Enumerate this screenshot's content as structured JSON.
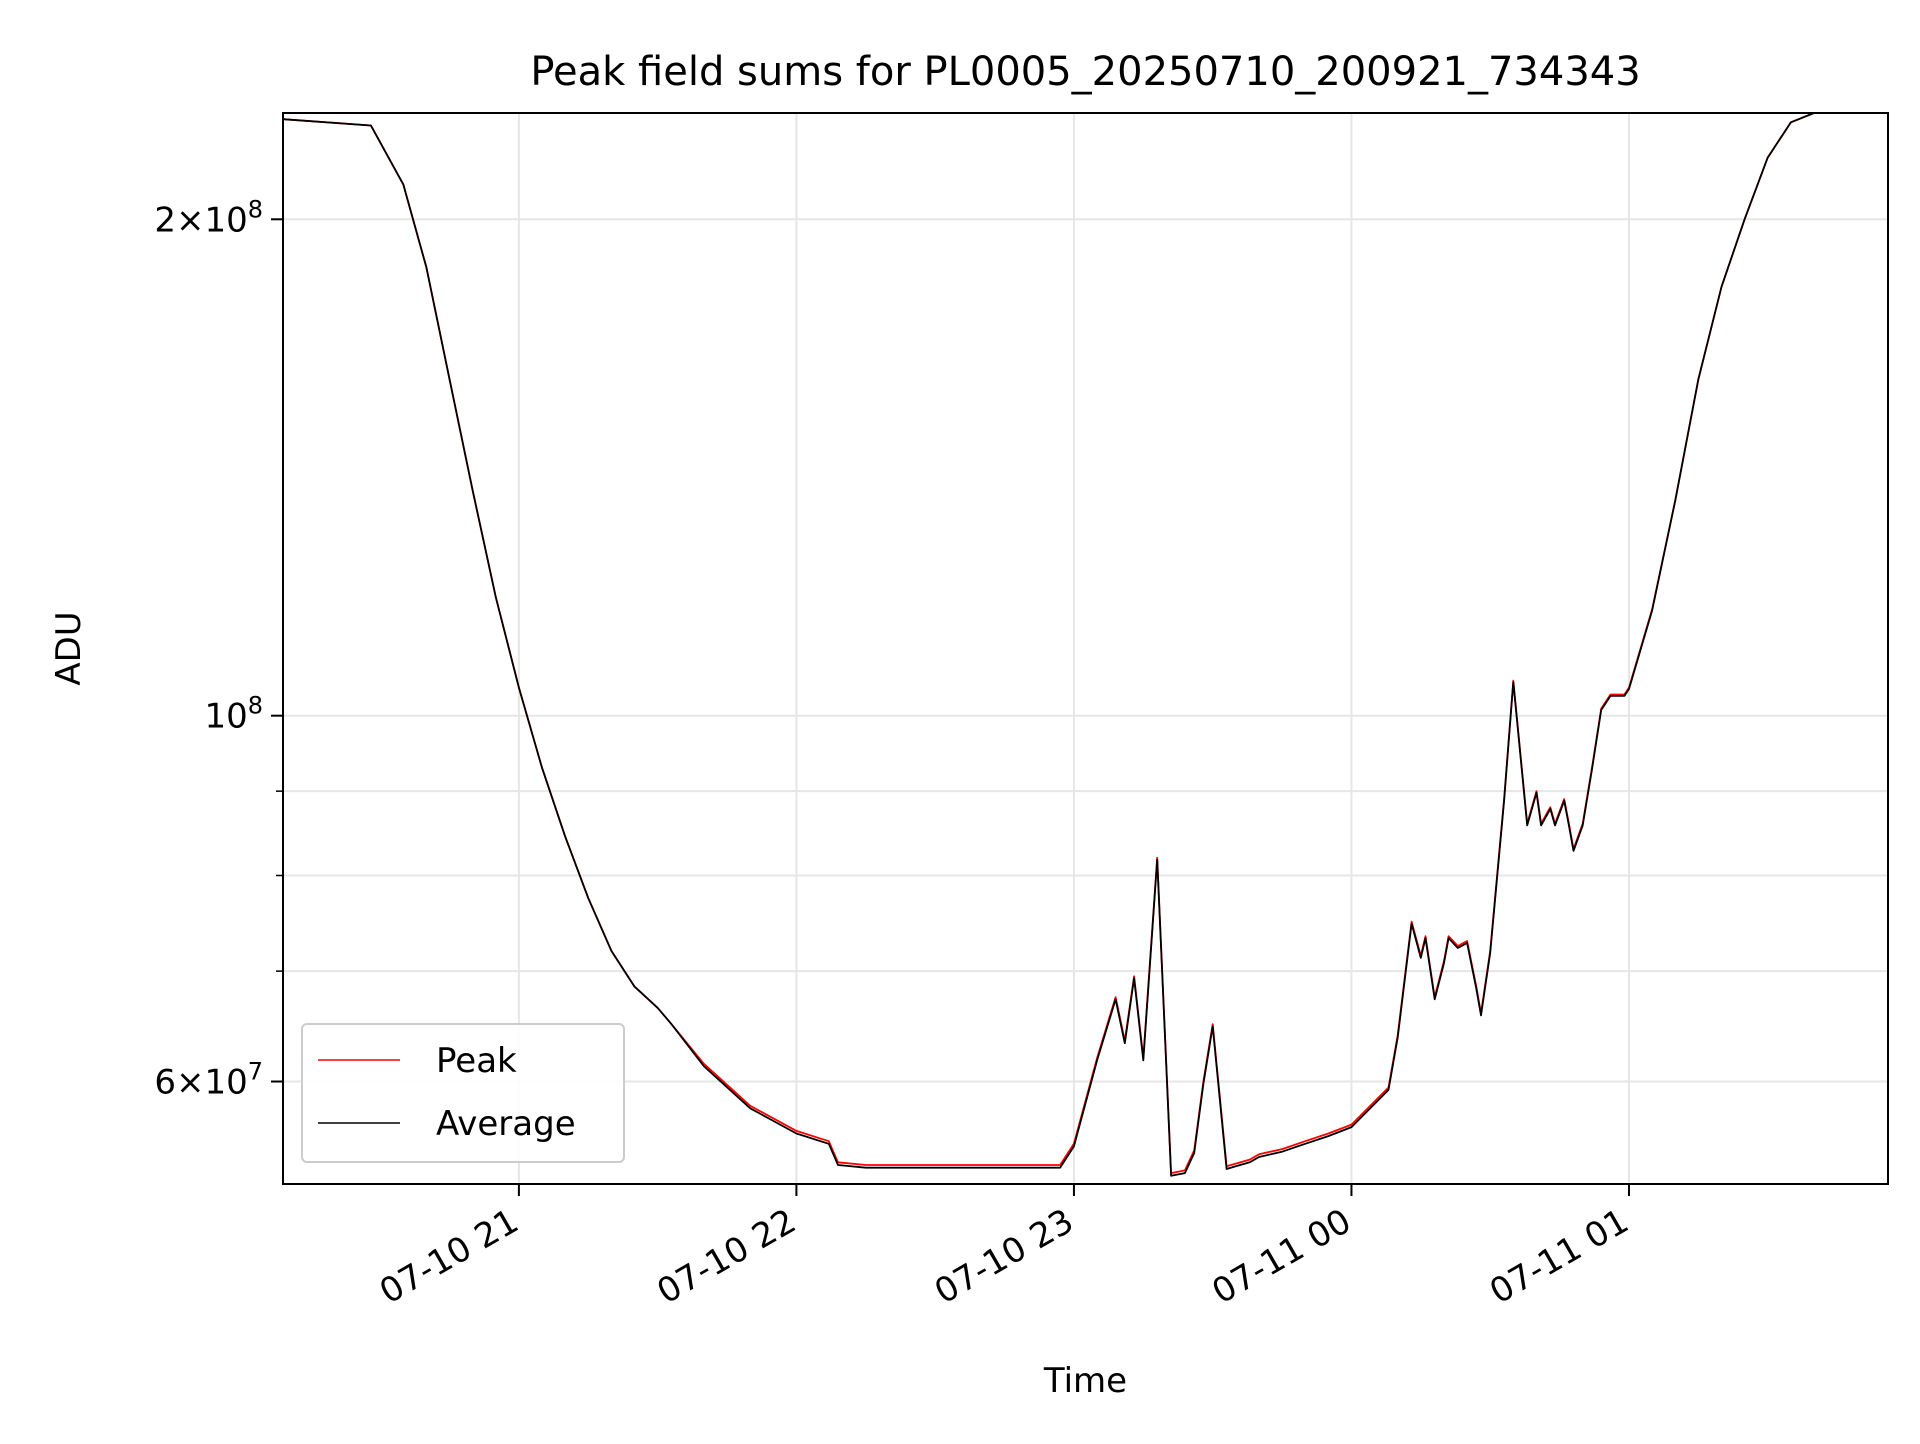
{
  "chart_data": {
    "type": "line",
    "title": "Peak field sums for PL0005_20250710_200921_734343",
    "xlabel": "Time",
    "ylabel": "ADU",
    "y_scale": "log",
    "xlim": [
      "2025-07-10 20:09",
      "2025-07-11 01:56"
    ],
    "ylim": [
      52000000,
      232000000
    ],
    "x_ticks": [
      {
        "value": "2025-07-10 21:00",
        "label": "07-10 21"
      },
      {
        "value": "2025-07-10 22:00",
        "label": "07-10 22"
      },
      {
        "value": "2025-07-10 23:00",
        "label": "07-10 23"
      },
      {
        "value": "2025-07-11 00:00",
        "label": "07-11 00"
      },
      {
        "value": "2025-07-11 01:00",
        "label": "07-11 01"
      }
    ],
    "y_ticks_major": [
      {
        "value": 60000000,
        "base": "6",
        "sup": "7"
      },
      {
        "value": 100000000,
        "base": "10",
        "sup": "8"
      },
      {
        "value": 200000000,
        "base": "2",
        "sup": "8"
      }
    ],
    "y_ticks_minor": [
      70000000,
      80000000,
      90000000
    ],
    "grid": true,
    "legend_position": "lower-left",
    "series": [
      {
        "name": "Peak",
        "color": "#ff0000",
        "x": [
          "2025-07-10 20:09",
          "2025-07-10 20:28",
          "2025-07-10 20:35",
          "2025-07-10 20:40",
          "2025-07-10 20:45",
          "2025-07-10 20:50",
          "2025-07-10 20:55",
          "2025-07-10 21:00",
          "2025-07-10 21:05",
          "2025-07-10 21:10",
          "2025-07-10 21:15",
          "2025-07-10 21:20",
          "2025-07-10 21:25",
          "2025-07-10 21:30",
          "2025-07-10 21:33",
          "2025-07-10 21:40",
          "2025-07-10 21:50",
          "2025-07-10 22:00",
          "2025-07-10 22:07",
          "2025-07-10 22:09",
          "2025-07-10 22:15",
          "2025-07-10 22:30",
          "2025-07-10 22:45",
          "2025-07-10 22:57",
          "2025-07-10 23:00",
          "2025-07-10 23:05",
          "2025-07-10 23:09",
          "2025-07-10 23:11",
          "2025-07-10 23:13",
          "2025-07-10 23:15",
          "2025-07-10 23:18",
          "2025-07-10 23:21",
          "2025-07-10 23:24",
          "2025-07-10 23:26",
          "2025-07-10 23:28",
          "2025-07-10 23:30",
          "2025-07-10 23:33",
          "2025-07-10 23:35",
          "2025-07-10 23:38",
          "2025-07-10 23:40",
          "2025-07-10 23:45",
          "2025-07-10 23:50",
          "2025-07-10 23:55",
          "2025-07-11 00:00",
          "2025-07-11 00:08",
          "2025-07-11 00:10",
          "2025-07-11 00:13",
          "2025-07-11 00:15",
          "2025-07-11 00:16",
          "2025-07-11 00:18",
          "2025-07-11 00:20",
          "2025-07-11 00:21",
          "2025-07-11 00:23",
          "2025-07-11 00:25",
          "2025-07-11 00:27",
          "2025-07-11 00:28",
          "2025-07-11 00:30",
          "2025-07-11 00:33",
          "2025-07-11 00:35",
          "2025-07-11 00:38",
          "2025-07-11 00:40",
          "2025-07-11 00:41",
          "2025-07-11 00:43",
          "2025-07-11 00:44",
          "2025-07-11 00:46",
          "2025-07-11 00:47",
          "2025-07-11 00:48",
          "2025-07-11 00:50",
          "2025-07-11 00:52",
          "2025-07-11 00:54",
          "2025-07-11 00:56",
          "2025-07-11 00:59",
          "2025-07-11 01:00",
          "2025-07-11 01:05",
          "2025-07-11 01:10",
          "2025-07-11 01:15",
          "2025-07-11 01:20",
          "2025-07-11 01:25",
          "2025-07-11 01:30",
          "2025-07-11 01:35",
          "2025-07-11 01:40",
          "2025-07-11 01:56"
        ],
        "y": [
          230000000,
          228000000,
          210000000,
          187000000,
          160000000,
          137000000,
          118000000,
          104000000,
          93000000,
          84500000,
          77500000,
          72000000,
          68500000,
          66500000,
          65000000,
          61500000,
          58000000,
          56000000,
          55200000,
          53600000,
          53400000,
          53400000,
          53400000,
          53400000,
          55000000,
          62000000,
          67500000,
          63500000,
          69500000,
          62000000,
          82000000,
          52800000,
          53000000,
          54500000,
          60000000,
          65000000,
          53300000,
          53500000,
          53800000,
          54200000,
          54600000,
          55200000,
          55800000,
          56500000,
          59500000,
          64000000,
          75000000,
          71500000,
          73500000,
          67500000,
          71000000,
          73500000,
          72500000,
          73000000,
          68500000,
          66000000,
          72000000,
          89000000,
          105000000,
          86000000,
          90000000,
          86000000,
          88000000,
          86000000,
          89000000,
          86000000,
          83000000,
          86000000,
          93000000,
          101000000,
          103000000,
          103000000,
          104000000,
          116000000,
          135000000,
          160000000,
          182000000,
          200000000,
          218000000,
          229000000,
          232000000,
          232000000
        ]
      },
      {
        "name": "Average",
        "color": "#000000",
        "x": [
          "2025-07-10 20:09",
          "2025-07-10 20:28",
          "2025-07-10 20:35",
          "2025-07-10 20:40",
          "2025-07-10 20:45",
          "2025-07-10 20:50",
          "2025-07-10 20:55",
          "2025-07-10 21:00",
          "2025-07-10 21:05",
          "2025-07-10 21:10",
          "2025-07-10 21:15",
          "2025-07-10 21:20",
          "2025-07-10 21:25",
          "2025-07-10 21:30",
          "2025-07-10 21:33",
          "2025-07-10 21:40",
          "2025-07-10 21:50",
          "2025-07-10 22:00",
          "2025-07-10 22:07",
          "2025-07-10 22:09",
          "2025-07-10 22:15",
          "2025-07-10 22:30",
          "2025-07-10 22:45",
          "2025-07-10 22:57",
          "2025-07-10 23:00",
          "2025-07-10 23:05",
          "2025-07-10 23:09",
          "2025-07-10 23:11",
          "2025-07-10 23:13",
          "2025-07-10 23:15",
          "2025-07-10 23:18",
          "2025-07-10 23:21",
          "2025-07-10 23:24",
          "2025-07-10 23:26",
          "2025-07-10 23:28",
          "2025-07-10 23:30",
          "2025-07-10 23:33",
          "2025-07-10 23:35",
          "2025-07-10 23:38",
          "2025-07-10 23:40",
          "2025-07-10 23:45",
          "2025-07-10 23:50",
          "2025-07-10 23:55",
          "2025-07-11 00:00",
          "2025-07-11 00:08",
          "2025-07-11 00:10",
          "2025-07-11 00:13",
          "2025-07-11 00:15",
          "2025-07-11 00:16",
          "2025-07-11 00:18",
          "2025-07-11 00:20",
          "2025-07-11 00:21",
          "2025-07-11 00:23",
          "2025-07-11 00:25",
          "2025-07-11 00:27",
          "2025-07-11 00:28",
          "2025-07-11 00:30",
          "2025-07-11 00:33",
          "2025-07-11 00:35",
          "2025-07-11 00:38",
          "2025-07-11 00:40",
          "2025-07-11 00:41",
          "2025-07-11 00:43",
          "2025-07-11 00:44",
          "2025-07-11 00:46",
          "2025-07-11 00:47",
          "2025-07-11 00:48",
          "2025-07-11 00:50",
          "2025-07-11 00:52",
          "2025-07-11 00:54",
          "2025-07-11 00:56",
          "2025-07-11 00:59",
          "2025-07-11 01:00",
          "2025-07-11 01:05",
          "2025-07-11 01:10",
          "2025-07-11 01:15",
          "2025-07-11 01:20",
          "2025-07-11 01:25",
          "2025-07-11 01:30",
          "2025-07-11 01:35",
          "2025-07-11 01:40",
          "2025-07-11 01:56"
        ],
        "y": [
          230000000,
          228000000,
          210000000,
          187000000,
          160000000,
          137000000,
          118000000,
          104000000,
          93000000,
          84500000,
          77500000,
          72000000,
          68500000,
          66500000,
          65000000,
          61300000,
          57800000,
          55800000,
          55000000,
          53400000,
          53200000,
          53200000,
          53200000,
          53200000,
          54800000,
          61800000,
          67300000,
          63300000,
          69300000,
          61800000,
          81800000,
          52600000,
          52800000,
          54300000,
          59800000,
          64800000,
          53100000,
          53300000,
          53600000,
          54000000,
          54400000,
          55000000,
          55600000,
          56300000,
          59300000,
          63800000,
          74800000,
          71300000,
          73300000,
          67300000,
          70800000,
          73300000,
          72300000,
          72800000,
          68300000,
          65800000,
          71800000,
          88800000,
          104800000,
          85800000,
          89800000,
          85800000,
          87800000,
          85800000,
          88800000,
          85800000,
          82800000,
          85800000,
          92800000,
          100800000,
          102800000,
          102800000,
          103800000,
          115800000,
          135000000,
          160000000,
          182000000,
          200000000,
          218000000,
          229000000,
          232000000,
          232000000
        ]
      }
    ]
  }
}
